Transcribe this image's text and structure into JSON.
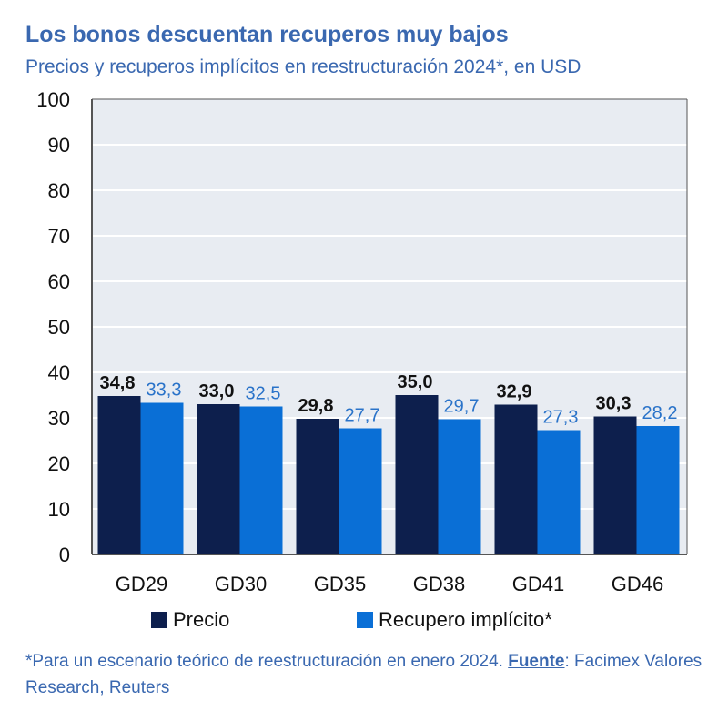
{
  "header": {
    "title": "Los bonos descuentan recuperos muy bajos",
    "subtitle": "Precios y recuperos implícitos en reestructuración 2024*, en USD"
  },
  "chart_data": {
    "type": "bar",
    "categories": [
      "GD29",
      "GD30",
      "GD35",
      "GD38",
      "GD41",
      "GD46"
    ],
    "series": [
      {
        "name": "Precio",
        "values": [
          34.8,
          33.0,
          29.8,
          35.0,
          32.9,
          30.3
        ],
        "labels": [
          "34,8",
          "33,0",
          "29,8",
          "35,0",
          "32,9",
          "30,3"
        ],
        "color": "#0d1f4d",
        "label_color": "#111111"
      },
      {
        "name": "Recupero implícito*",
        "values": [
          33.3,
          32.5,
          27.7,
          29.7,
          27.3,
          28.2
        ],
        "labels": [
          "33,3",
          "32,5",
          "27,7",
          "29,7",
          "27,3",
          "28,2"
        ],
        "color": "#0a6fd6",
        "label_color": "#2a73c9"
      }
    ],
    "ylim": [
      0,
      100
    ],
    "yticks": [
      "0",
      "10",
      "20",
      "30",
      "40",
      "50",
      "60",
      "70",
      "80",
      "90",
      "100"
    ],
    "grid": true,
    "legend_position": "bottom",
    "plot_background": "#e8ecf2"
  },
  "legend": {
    "items": [
      {
        "label": "Precio",
        "color": "#0d1f4d"
      },
      {
        "label": "Recupero implícito*",
        "color": "#0a6fd6"
      }
    ]
  },
  "footnote": {
    "text": "*Para un escenario teórico de reestructuración en enero 2024. ",
    "source_label": "Fuente",
    "source_text": ": Facimex Valores Research, Reuters"
  }
}
